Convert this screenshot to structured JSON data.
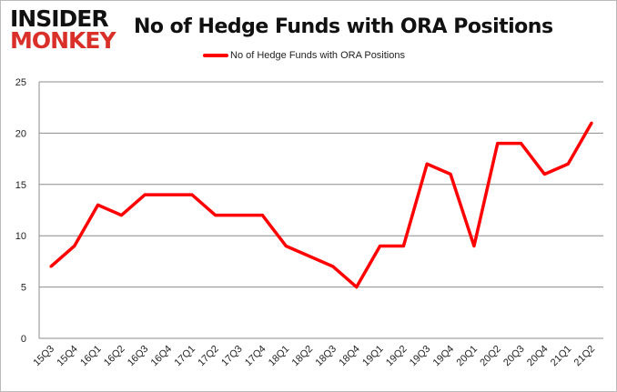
{
  "logo": {
    "line1": "INSIDER",
    "line2": "MONKEY"
  },
  "chart_data": {
    "type": "line",
    "title": "No of Hedge Funds with ORA Positions",
    "categories": [
      "15Q3",
      "15Q4",
      "16Q1",
      "16Q2",
      "16Q3",
      "16Q4",
      "17Q1",
      "17Q2",
      "17Q3",
      "17Q4",
      "18Q1",
      "18Q2",
      "18Q3",
      "18Q4",
      "19Q1",
      "19Q2",
      "19Q3",
      "19Q4",
      "20Q1",
      "20Q2",
      "20Q3",
      "20Q4",
      "21Q1",
      "21Q2"
    ],
    "series": [
      {
        "name": "No of Hedge Funds with ORA Positions",
        "color": "#ff0000",
        "values": [
          7,
          9,
          13,
          12,
          14,
          14,
          14,
          12,
          12,
          12,
          9,
          8,
          7,
          5,
          9,
          9,
          17,
          16,
          9,
          19,
          19,
          16,
          17,
          21
        ]
      }
    ],
    "ylim": [
      0,
      25
    ],
    "yticks": [
      0,
      5,
      10,
      15,
      20,
      25
    ],
    "grid": true,
    "legend": "top"
  }
}
